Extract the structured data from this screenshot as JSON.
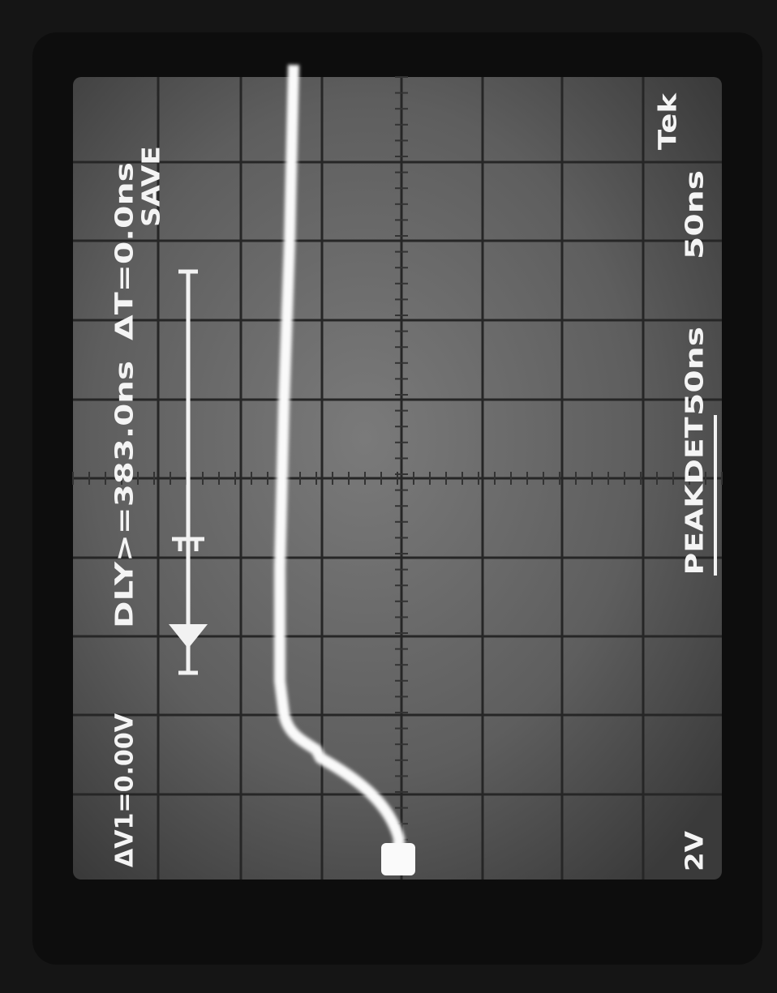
{
  "screen": {
    "readouts_top": {
      "delta_v": "ΔV1=0.00V",
      "delay": "DLY>=383.0ns",
      "delta_t": "ΔT=0.0ns",
      "mode": "SAVE"
    },
    "readouts_bottom": {
      "volts_per_div": "2V",
      "acquisition": "PEAKDET",
      "time_per_div_main": "50ns",
      "time_per_div_delayed": "50ns",
      "brand": "Tek"
    }
  }
}
